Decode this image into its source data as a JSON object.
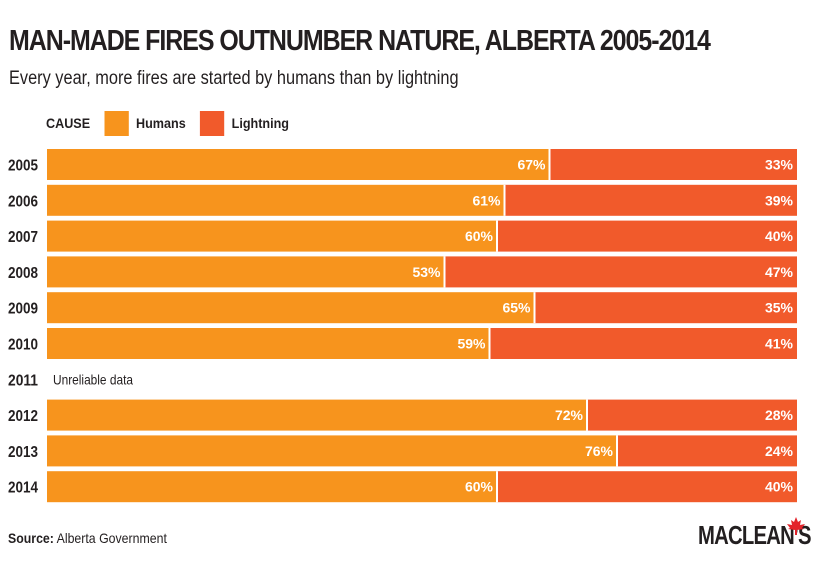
{
  "header": {
    "title": "MAN-MADE FIRES OUTNUMBER NATURE, ALBERTA 2005-2014",
    "subtitle": "Every year, more fires are started by humans than by lightning"
  },
  "legend": {
    "heading": "CAUSE",
    "items": [
      {
        "label": "Humans",
        "color": "#f7941d"
      },
      {
        "label": "Lightning",
        "color": "#f15a2b"
      }
    ]
  },
  "chart_data": {
    "type": "bar",
    "orientation": "horizontal",
    "stacked": true,
    "percent": true,
    "categories": [
      "2005",
      "2006",
      "2007",
      "2008",
      "2009",
      "2010",
      "2011",
      "2012",
      "2013",
      "2014"
    ],
    "series": [
      {
        "name": "Humans",
        "color": "#f7941d",
        "values": [
          67,
          61,
          60,
          53,
          65,
          59,
          null,
          72,
          76,
          60
        ]
      },
      {
        "name": "Lightning",
        "color": "#f15a2b",
        "values": [
          33,
          39,
          40,
          47,
          35,
          41,
          null,
          28,
          24,
          40
        ]
      }
    ],
    "annotations": [
      {
        "category": "2011",
        "text": "Unreliable data"
      }
    ],
    "xlim": [
      0,
      100
    ],
    "grid": false,
    "legend_position": "top-left"
  },
  "footer": {
    "source_label": "Source:",
    "source_text": " Alberta Government",
    "logo_text": "MACLEAN'S"
  }
}
